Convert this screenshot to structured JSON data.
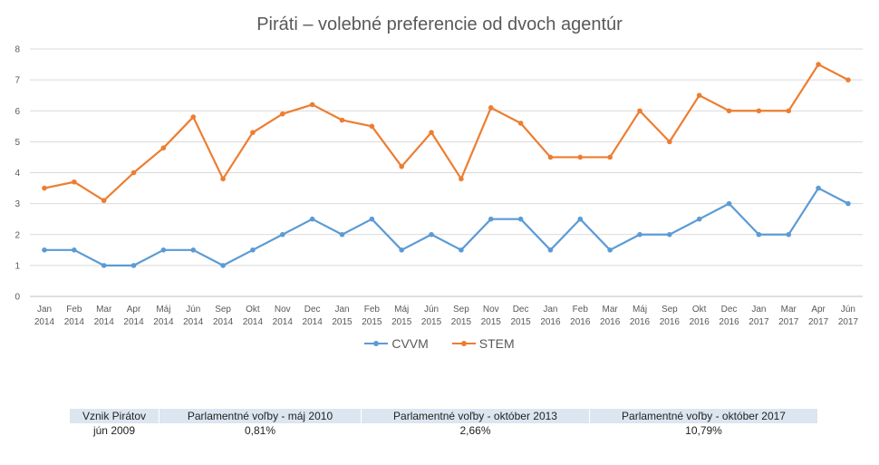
{
  "chart_data": {
    "type": "line",
    "title": "Piráti – volebné preferencie od dvoch agentúr",
    "ylim": [
      0,
      8
    ],
    "yticks": [
      "0",
      "1",
      "2",
      "3",
      "4",
      "5",
      "6",
      "7",
      "8"
    ],
    "grid": true,
    "legend_position": "bottom",
    "categories": [
      [
        "Jan",
        "2014"
      ],
      [
        "Feb",
        "2014"
      ],
      [
        "Mar",
        "2014"
      ],
      [
        "Apr",
        "2014"
      ],
      [
        "Máj",
        "2014"
      ],
      [
        "Jún",
        "2014"
      ],
      [
        "Sep",
        "2014"
      ],
      [
        "Okt",
        "2014"
      ],
      [
        "Nov",
        "2014"
      ],
      [
        "Dec",
        "2014"
      ],
      [
        "Jan",
        "2015"
      ],
      [
        "Feb",
        "2015"
      ],
      [
        "Máj",
        "2015"
      ],
      [
        "Jún",
        "2015"
      ],
      [
        "Sep",
        "2015"
      ],
      [
        "Nov",
        "2015"
      ],
      [
        "Dec",
        "2015"
      ],
      [
        "Jan",
        "2016"
      ],
      [
        "Feb",
        "2016"
      ],
      [
        "Mar",
        "2016"
      ],
      [
        "Máj",
        "2016"
      ],
      [
        "Sep",
        "2016"
      ],
      [
        "Okt",
        "2016"
      ],
      [
        "Dec",
        "2016"
      ],
      [
        "Jan",
        "2017"
      ],
      [
        "Mar",
        "2017"
      ],
      [
        "Apr",
        "2017"
      ],
      [
        "Jún",
        "2017"
      ]
    ],
    "series": [
      {
        "name": "CVVM",
        "color": "#5b9bd5",
        "values": [
          1.5,
          1.5,
          1.0,
          1.0,
          1.5,
          1.5,
          1.0,
          1.5,
          2.0,
          2.5,
          2.0,
          2.5,
          1.5,
          2.0,
          1.5,
          2.5,
          2.5,
          1.5,
          2.5,
          1.5,
          2.0,
          2.0,
          2.5,
          3.0,
          2.0,
          2.0,
          3.5,
          3.0
        ]
      },
      {
        "name": "STEM",
        "color": "#ed7d31",
        "values": [
          3.5,
          3.7,
          3.1,
          4.0,
          4.8,
          5.8,
          3.8,
          5.3,
          5.9,
          6.2,
          5.7,
          5.5,
          4.2,
          5.3,
          3.8,
          6.1,
          5.6,
          4.5,
          4.5,
          4.5,
          6.0,
          5.0,
          6.5,
          6.0,
          6.0,
          6.0,
          7.5,
          7.0
        ]
      }
    ]
  },
  "info_table": {
    "headers": [
      "Vznik Pirátov",
      "Parlamentné voľby - máj 2010",
      "Parlamentné voľby - október 2013",
      "Parlamentné voľby - október 2017"
    ],
    "values": [
      "jún 2009",
      "0,81%",
      "2,66%",
      "10,79%"
    ]
  }
}
